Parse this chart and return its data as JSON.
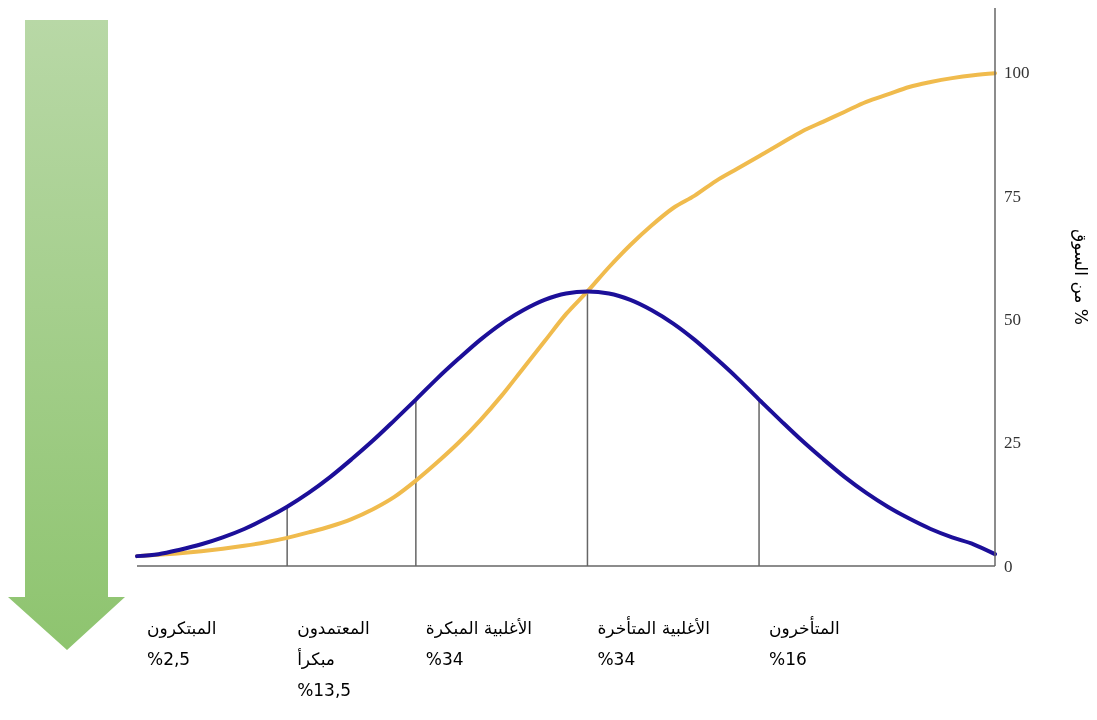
{
  "chart_data": {
    "type": "line",
    "ylabel": "% من السوق",
    "categories": [
      null,
      null,
      null,
      null,
      null,
      null,
      null,
      null,
      null,
      null,
      null,
      null,
      null,
      null,
      null,
      null,
      null,
      null,
      null,
      null,
      null,
      null,
      null,
      null,
      null,
      null,
      null,
      null,
      null,
      null,
      null,
      null,
      null,
      null,
      null,
      null,
      null,
      null,
      null,
      null,
      null
    ],
    "ylim": [
      0,
      113
    ],
    "yticks": [
      0,
      25,
      50,
      75,
      100
    ],
    "tick_labels": "y",
    "marker": "none",
    "line_style": "solid",
    "series": [
      {
        "type": "bar",
        "color": "#666666",
        "values": [
          null,
          null,
          null,
          null,
          null,
          null,
          null,
          12.0,
          null,
          null,
          null,
          null,
          null,
          33.7,
          null,
          null,
          null,
          null,
          null,
          null,
          null,
          55.6,
          null,
          null,
          null,
          null,
          null,
          null,
          null,
          33.7,
          null,
          null,
          null,
          null,
          null,
          null,
          null,
          null,
          null,
          null,
          null
        ]
      },
      {
        "color": "#f0bb4d",
        "values": [
          2,
          2.3,
          2.6,
          3.0,
          3.5,
          4.1,
          4.8,
          5.7,
          6.8,
          8.0,
          9.5,
          11.5,
          14,
          17.3,
          21,
          25,
          29.5,
          34.5,
          40,
          45.5,
          51,
          55.6,
          60.5,
          65,
          69,
          72.5,
          75,
          78,
          80.5,
          83,
          85.5,
          88,
          90,
          92,
          94,
          95.5,
          97,
          98,
          98.8,
          99.4,
          99.8
        ]
      },
      {
        "color": "#1c0f99",
        "values": [
          2.0,
          2.4,
          3.3,
          4.4,
          5.8,
          7.5,
          9.6,
          12.0,
          14.8,
          18.0,
          21.6,
          25.4,
          29.5,
          33.7,
          38.0,
          42.0,
          45.8,
          49.1,
          51.8,
          53.9,
          55.2,
          55.6,
          55.2,
          53.9,
          51.8,
          49.1,
          45.8,
          42.0,
          38.0,
          33.7,
          29.5,
          25.4,
          21.6,
          18.0,
          14.8,
          12.0,
          9.6,
          7.5,
          5.8,
          4.4,
          2.4
        ]
      }
    ],
    "annotations": [
      "المبتكرون\n%2,5",
      "المعتمدون\nمبكرأ\n%13,5",
      "الأغلبية المبكرة\n%34",
      "الأغلبية المتأخرة\n%34",
      "المتأخرون\n%16"
    ]
  }
}
